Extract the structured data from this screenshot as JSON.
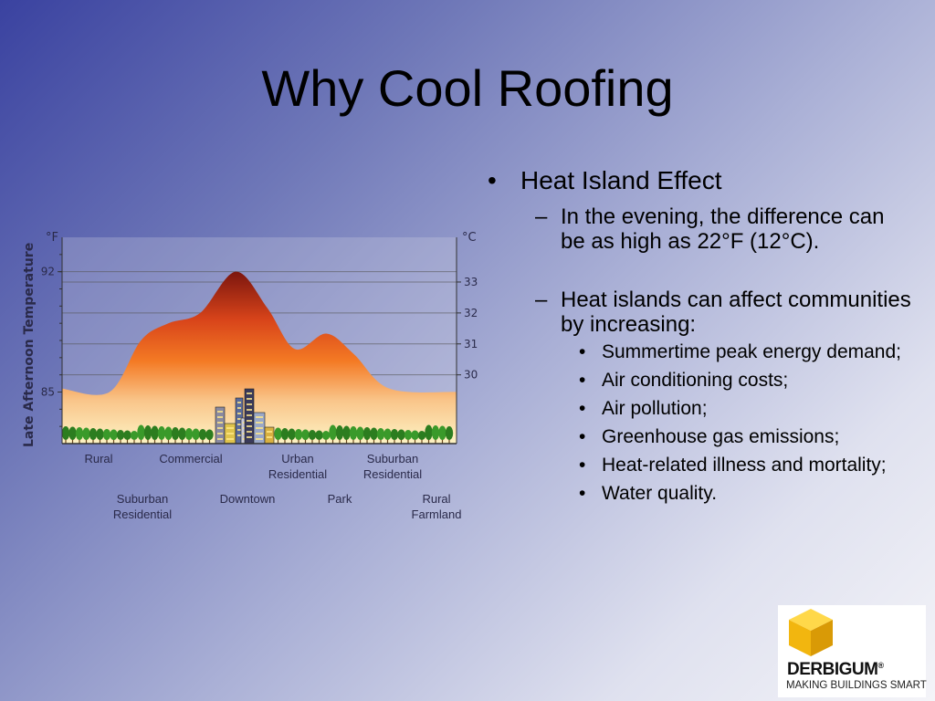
{
  "slide": {
    "title": "Why Cool Roofing"
  },
  "bullets": {
    "main": "Heat Island Effect",
    "sub1": {
      "dash": "–",
      "text": "In the evening, the difference can be as high as 22°F (12°C)."
    },
    "sub2": {
      "dash": "–",
      "text": "Heat islands can affect communities by increasing:"
    },
    "items": [
      "Summertime peak energy demand;",
      "Air conditioning costs;",
      "Air pollution;",
      "Greenhouse gas emissions;",
      "Heat-related illness and mortality;",
      "Water quality."
    ]
  },
  "chart_data": {
    "type": "area",
    "ylabel": "Late Afternoon Temperature",
    "left_unit": "°F",
    "right_unit": "°C",
    "left_ticks": [
      {
        "label": "85",
        "value": 85
      },
      {
        "label": "92",
        "value": 92
      }
    ],
    "right_ticks": [
      {
        "label": "30",
        "value": 30
      },
      {
        "label": "31",
        "value": 31
      },
      {
        "label": "32",
        "value": 32
      },
      {
        "label": "33",
        "value": 33
      }
    ],
    "ylim_f": [
      82,
      94
    ],
    "categories_top": [
      "Rural",
      "Commercial",
      "Urban Residential",
      "Suburban Residential"
    ],
    "categories_bottom": [
      "Suburban Residential",
      "Downtown",
      "Park",
      "Rural Farmland"
    ],
    "profile": [
      {
        "x": 0,
        "y": 85.2
      },
      {
        "x": 0.12,
        "y": 85.0
      },
      {
        "x": 0.2,
        "y": 88.0
      },
      {
        "x": 0.27,
        "y": 89.0
      },
      {
        "x": 0.35,
        "y": 89.6
      },
      {
        "x": 0.44,
        "y": 92.0
      },
      {
        "x": 0.52,
        "y": 89.9
      },
      {
        "x": 0.59,
        "y": 87.5
      },
      {
        "x": 0.67,
        "y": 88.4
      },
      {
        "x": 0.74,
        "y": 87.2
      },
      {
        "x": 0.83,
        "y": 85.2
      },
      {
        "x": 1.0,
        "y": 85.0
      }
    ],
    "grid": true
  },
  "logo": {
    "name": "DERBIGUM",
    "registered": "®",
    "tagline": "MAKING BUILDINGS SMART"
  },
  "colors": {
    "logo_yellow": "#f7c61a",
    "logo_yellow_dark": "#d9a20a",
    "heat_top": "#8c1c10",
    "heat_mid": "#f36d1d",
    "heat_low": "#fbe9ae"
  }
}
